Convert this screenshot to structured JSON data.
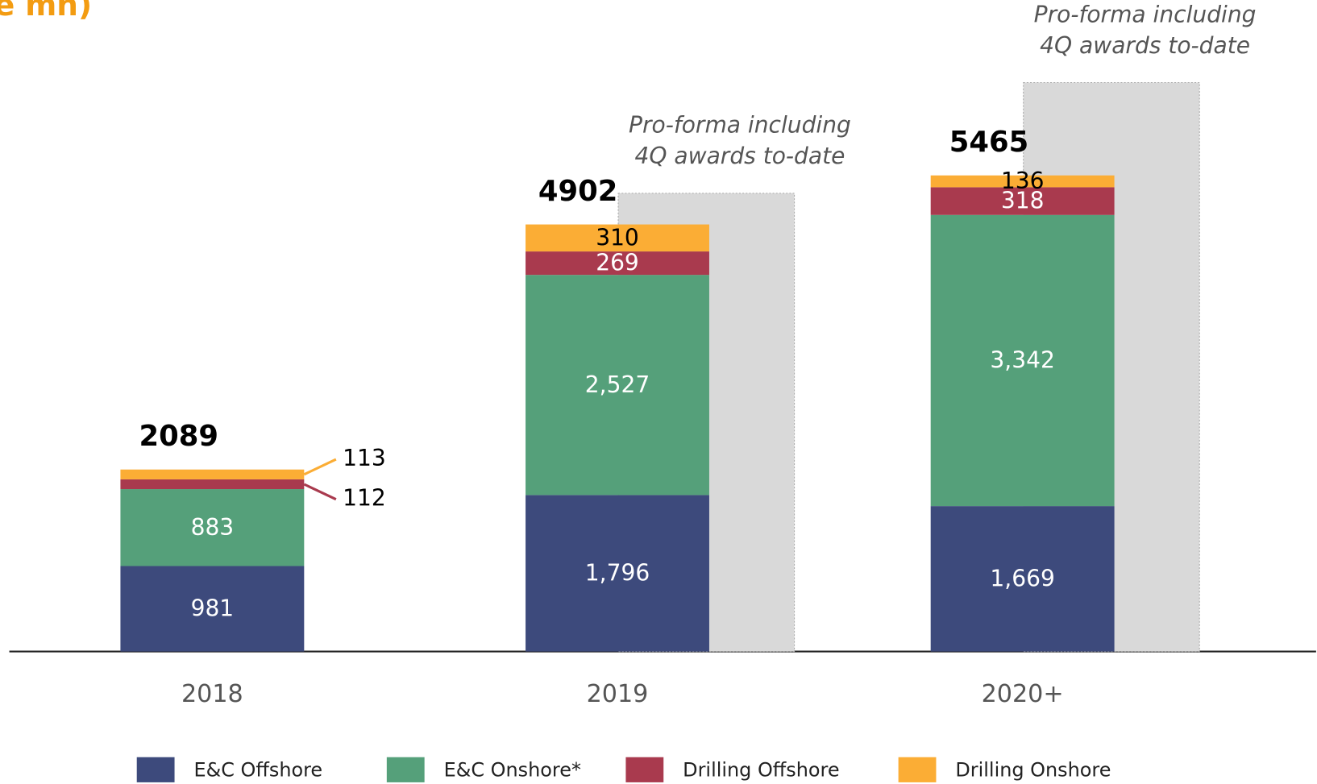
{
  "chart_data": {
    "type": "stacked-bar",
    "title": "e mn)",
    "categories": [
      "2018",
      "2019",
      "2020+"
    ],
    "series": [
      {
        "name": "E&C Offshore",
        "color": "#3d4a7c",
        "values": [
          981,
          1796,
          1669
        ],
        "value_labels": [
          "981",
          "1,796",
          "1,669"
        ]
      },
      {
        "name": "E&C Onshore*",
        "color": "#55a07a",
        "values": [
          883,
          2527,
          3342
        ],
        "value_labels": [
          "883",
          "2,527",
          "3,342"
        ]
      },
      {
        "name": "Drilling Offshore",
        "color": "#a93a4e",
        "values": [
          112,
          269,
          318
        ]
      },
      {
        "name": "Drilling Onshore",
        "color": "#fbad35",
        "values": [
          113,
          310,
          136
        ]
      }
    ],
    "totals": [
      2089,
      4902,
      5465
    ],
    "proforma": {
      "color": "#d9d9d9",
      "values": [
        null,
        5260,
        6530
      ],
      "annotation": [
        "Pro-forma including",
        "4Q awards to-date"
      ]
    }
  }
}
